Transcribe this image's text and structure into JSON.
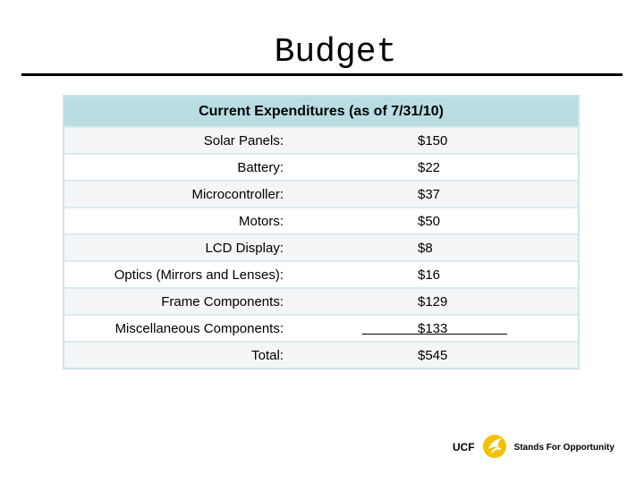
{
  "slide": {
    "title": "Budget"
  },
  "table": {
    "header": "Current Expenditures (as of 7/31/10)",
    "rows": [
      {
        "label": "Solar Panels:",
        "value": "$150"
      },
      {
        "label": "Battery:",
        "value": "$22"
      },
      {
        "label": "Microcontroller:",
        "value": "$37"
      },
      {
        "label": "Motors:",
        "value": "$50"
      },
      {
        "label": "LCD Display:",
        "value": "$8"
      },
      {
        "label": "Optics (Mirrors and Lenses):",
        "value": "$16"
      },
      {
        "label": "Frame Components:",
        "value": "$129"
      },
      {
        "label": "Miscellaneous Components:",
        "value": "$133"
      },
      {
        "label": "Total:",
        "value": "$545"
      }
    ]
  },
  "footer": {
    "org": "UCF",
    "tagline": "Stands For Opportunity",
    "accent": "#f2c200"
  }
}
